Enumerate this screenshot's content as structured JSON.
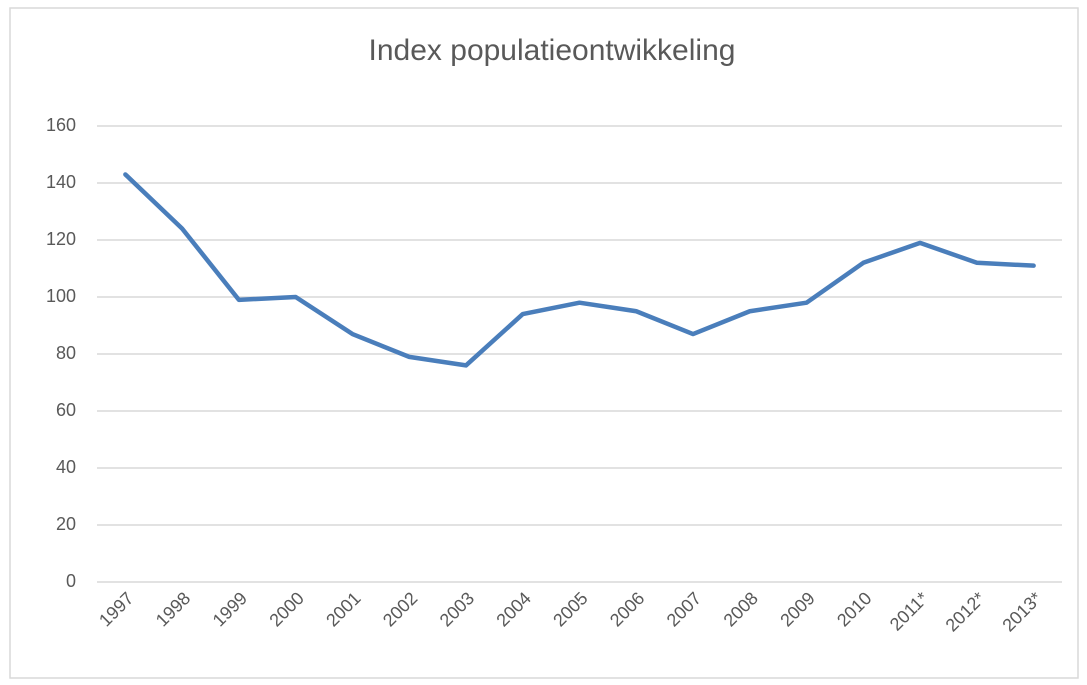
{
  "chart_data": {
    "type": "line",
    "title": "Index populatieontwikkeling",
    "categories": [
      "1997",
      "1998",
      "1999",
      "2000",
      "2001",
      "2002",
      "2003",
      "2004",
      "2005",
      "2006",
      "2007",
      "2008",
      "2009",
      "2010",
      "2011*",
      "2012*",
      "2013*"
    ],
    "values": [
      143,
      124,
      99,
      100,
      87,
      79,
      76,
      94,
      98,
      95,
      87,
      95,
      98,
      112,
      119,
      112,
      111
    ],
    "color": "#4a7ebb",
    "ylim": [
      0,
      160
    ],
    "yticks": [
      0,
      20,
      40,
      60,
      80,
      100,
      120,
      140,
      160
    ],
    "grid": true
  }
}
